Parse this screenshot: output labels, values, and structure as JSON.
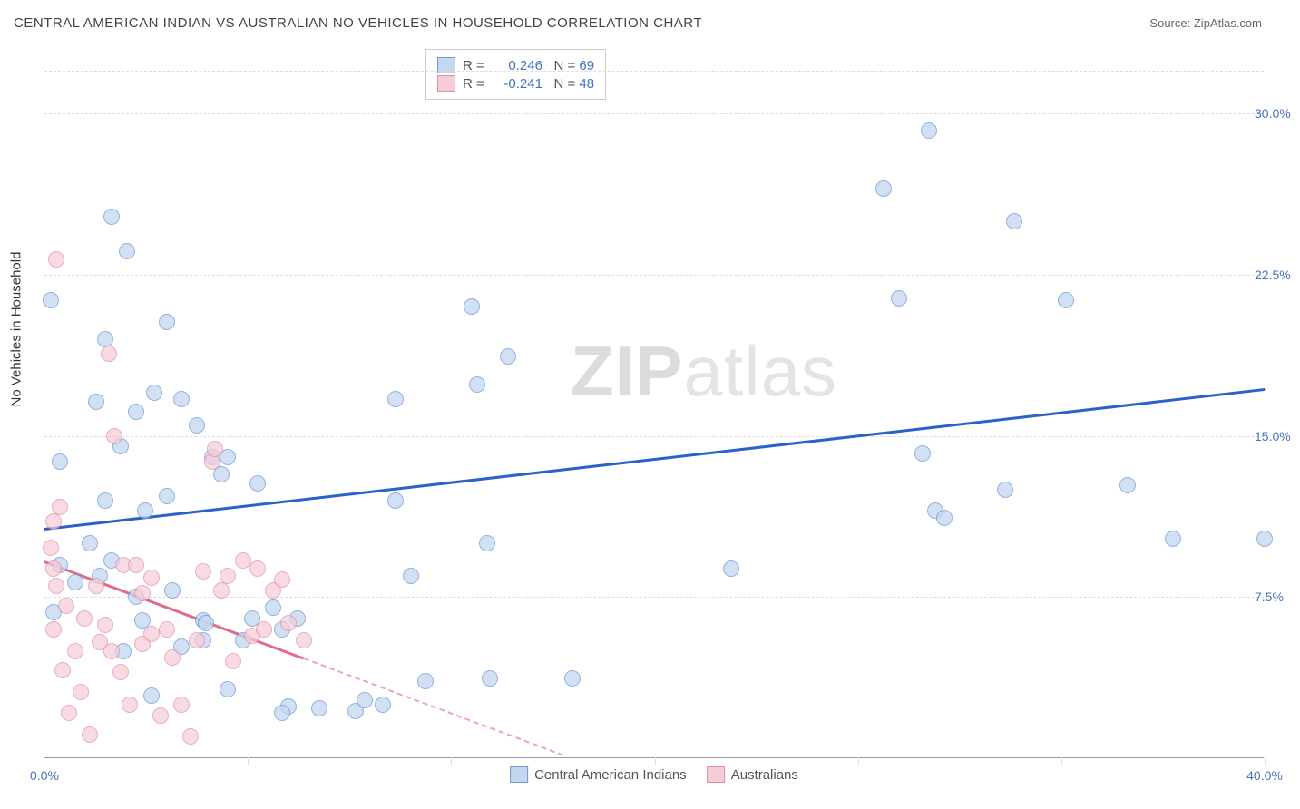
{
  "header": {
    "title": "CENTRAL AMERICAN INDIAN VS AUSTRALIAN NO VEHICLES IN HOUSEHOLD CORRELATION CHART",
    "source_label": "Source:",
    "source_name": "ZipAtlas.com"
  },
  "watermark": {
    "part1": "ZIP",
    "part2": "atlas"
  },
  "chart": {
    "type": "scatter",
    "xlim": [
      0,
      40
    ],
    "ylim": [
      0,
      33
    ],
    "x_ticks": [
      0,
      20,
      40
    ],
    "x_tick_labels": [
      "0.0%",
      "",
      "40.0%"
    ],
    "x_minor_gridlines": [
      0,
      6.67,
      13.33,
      20,
      26.67,
      33.33,
      40
    ],
    "y_ticks": [
      7.5,
      15.0,
      22.5,
      30.0
    ],
    "y_tick_labels": [
      "7.5%",
      "15.0%",
      "22.5%",
      "30.0%"
    ],
    "y_axis_title": "No Vehicles in Household",
    "y_tick_color": "#4573c4",
    "x_tick_color": "#4573c4",
    "background": "#ffffff",
    "grid_color": "#dddddd",
    "point_radius": 9,
    "point_border_width": 1.2
  },
  "stats_box": {
    "rows": [
      {
        "swatch": {
          "fill": "#c4d6f0",
          "border": "#6f99d6"
        },
        "r_label": "R =",
        "r_value": "0.246",
        "n_label": "N =",
        "n_value": "69",
        "value_color": "#4573c4"
      },
      {
        "swatch": {
          "fill": "#f6cdd6",
          "border": "#e58ba2"
        },
        "r_label": "R =",
        "r_value": "-0.241",
        "n_label": "N =",
        "n_value": "48",
        "value_color": "#4573c4"
      }
    ]
  },
  "legend": {
    "items": [
      {
        "label": "Central American Indians",
        "fill": "#c4d6f0",
        "border": "#6f99d6"
      },
      {
        "label": "Australians",
        "fill": "#f6cdd6",
        "border": "#e58ba2"
      }
    ]
  },
  "series": [
    {
      "name": "Central American Indians",
      "fill": "#c4d6f0",
      "border": "#6f99d6",
      "opacity": 0.75,
      "trend": {
        "color": "#2a62c9",
        "x1": 0,
        "y1": 10.7,
        "x2": 40,
        "y2": 17.2,
        "dash_after_x": null
      },
      "points": [
        [
          0.2,
          21.3
        ],
        [
          2.2,
          25.2
        ],
        [
          2.7,
          23.6
        ],
        [
          0.5,
          13.8
        ],
        [
          2.0,
          12.0
        ],
        [
          4.0,
          20.3
        ],
        [
          3.6,
          17.0
        ],
        [
          3.0,
          16.1
        ],
        [
          2.5,
          14.5
        ],
        [
          1.8,
          8.5
        ],
        [
          3.3,
          11.5
        ],
        [
          4.0,
          12.2
        ],
        [
          1.7,
          16.6
        ],
        [
          4.5,
          5.2
        ],
        [
          5.2,
          6.4
        ],
        [
          5.5,
          14.0
        ],
        [
          5.8,
          13.2
        ],
        [
          5.3,
          6.3
        ],
        [
          6.0,
          3.2
        ],
        [
          6.5,
          5.5
        ],
        [
          7.5,
          7.0
        ],
        [
          7.8,
          6.0
        ],
        [
          8.3,
          6.5
        ],
        [
          7.0,
          12.8
        ],
        [
          8.0,
          2.4
        ],
        [
          10.2,
          2.2
        ],
        [
          10.5,
          2.7
        ],
        [
          11.1,
          2.5
        ],
        [
          11.5,
          16.7
        ],
        [
          11.5,
          12.0
        ],
        [
          14.0,
          21.0
        ],
        [
          14.2,
          17.4
        ],
        [
          15.2,
          18.7
        ],
        [
          14.5,
          10.0
        ],
        [
          12.0,
          8.5
        ],
        [
          12.5,
          3.6
        ],
        [
          17.3,
          3.7
        ],
        [
          14.6,
          3.7
        ],
        [
          22.5,
          8.8
        ],
        [
          27.5,
          26.5
        ],
        [
          29.0,
          29.2
        ],
        [
          31.8,
          25.0
        ],
        [
          28.0,
          21.4
        ],
        [
          28.8,
          14.2
        ],
        [
          29.2,
          11.5
        ],
        [
          29.5,
          11.2
        ],
        [
          31.5,
          12.5
        ],
        [
          33.5,
          21.3
        ],
        [
          35.5,
          12.7
        ],
        [
          37.0,
          10.2
        ],
        [
          40.0,
          10.2
        ],
        [
          0.5,
          9.0
        ],
        [
          1.5,
          10.0
        ],
        [
          1.0,
          8.2
        ],
        [
          2.2,
          9.2
        ],
        [
          3.0,
          7.5
        ],
        [
          4.2,
          7.8
        ],
        [
          3.2,
          6.4
        ],
        [
          2.6,
          5.0
        ],
        [
          6.0,
          14.0
        ],
        [
          9.0,
          2.3
        ],
        [
          3.5,
          2.9
        ],
        [
          5.0,
          15.5
        ],
        [
          2.0,
          19.5
        ],
        [
          4.5,
          16.7
        ],
        [
          5.2,
          5.5
        ],
        [
          6.8,
          6.5
        ],
        [
          7.8,
          2.1
        ],
        [
          0.3,
          6.8
        ]
      ]
    },
    {
      "name": "Australians",
      "fill": "#f6cdd6",
      "border": "#e58ba2",
      "opacity": 0.7,
      "trend": {
        "color": "#e06c8a",
        "x1": 0,
        "y1": 9.2,
        "x2": 17,
        "y2": 0.2,
        "dash_after_x": 8.5
      },
      "points": [
        [
          0.4,
          23.2
        ],
        [
          0.5,
          11.7
        ],
        [
          0.3,
          11.0
        ],
        [
          0.2,
          9.8
        ],
        [
          0.3,
          8.8
        ],
        [
          0.4,
          8.0
        ],
        [
          0.7,
          7.1
        ],
        [
          0.3,
          6.0
        ],
        [
          1.0,
          5.0
        ],
        [
          0.6,
          4.1
        ],
        [
          1.2,
          3.1
        ],
        [
          0.8,
          2.1
        ],
        [
          1.5,
          1.1
        ],
        [
          1.8,
          5.4
        ],
        [
          2.0,
          6.2
        ],
        [
          2.2,
          5.0
        ],
        [
          2.5,
          4.0
        ],
        [
          2.8,
          2.5
        ],
        [
          1.7,
          8.0
        ],
        [
          2.1,
          18.8
        ],
        [
          2.3,
          15.0
        ],
        [
          2.6,
          9.0
        ],
        [
          3.0,
          9.0
        ],
        [
          3.2,
          7.7
        ],
        [
          3.5,
          8.4
        ],
        [
          3.2,
          5.3
        ],
        [
          3.5,
          5.8
        ],
        [
          3.8,
          2.0
        ],
        [
          4.0,
          6.0
        ],
        [
          4.2,
          4.7
        ],
        [
          4.5,
          2.5
        ],
        [
          4.8,
          1.0
        ],
        [
          5.0,
          5.5
        ],
        [
          5.2,
          8.7
        ],
        [
          5.5,
          13.8
        ],
        [
          5.6,
          14.4
        ],
        [
          5.8,
          7.8
        ],
        [
          6.0,
          8.5
        ],
        [
          6.2,
          4.5
        ],
        [
          6.5,
          9.2
        ],
        [
          6.8,
          5.7
        ],
        [
          7.0,
          8.8
        ],
        [
          7.2,
          6.0
        ],
        [
          7.5,
          7.8
        ],
        [
          7.8,
          8.3
        ],
        [
          8.0,
          6.3
        ],
        [
          8.5,
          5.5
        ],
        [
          1.3,
          6.5
        ]
      ]
    }
  ]
}
